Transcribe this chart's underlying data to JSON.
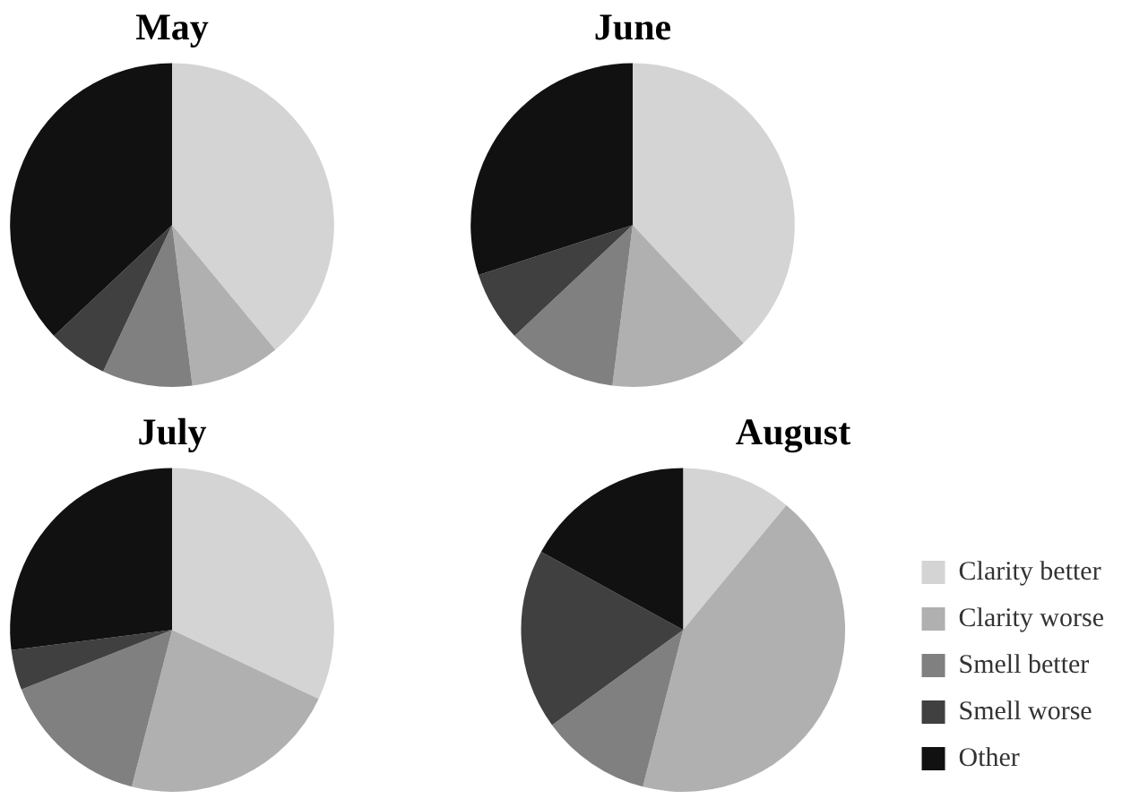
{
  "chart_data": [
    {
      "type": "pie",
      "title": "May",
      "categories": [
        null,
        null,
        null,
        null,
        null
      ],
      "values": [
        39,
        9,
        9,
        6,
        37
      ],
      "colors": [
        "#d4d4d4",
        "#b0b0b0",
        "#808080",
        "#404040",
        "#111111"
      ],
      "legend": false
    },
    {
      "type": "pie",
      "title": "June",
      "categories": [
        null,
        null,
        null,
        null,
        null
      ],
      "values": [
        38,
        14,
        11,
        7,
        30
      ],
      "colors": [
        "#d4d4d4",
        "#b0b0b0",
        "#808080",
        "#404040",
        "#111111"
      ],
      "legend": false
    },
    {
      "type": "pie",
      "title": "July",
      "categories": [
        null,
        null,
        null,
        null,
        null
      ],
      "values": [
        32,
        22,
        15,
        4,
        27
      ],
      "colors": [
        "#d4d4d4",
        "#b0b0b0",
        "#808080",
        "#404040",
        "#111111"
      ],
      "legend": false
    },
    {
      "type": "pie",
      "title": "August",
      "categories": [
        "Clarity better",
        "Clarity worse",
        "Smell better",
        "Smell worse",
        "Other"
      ],
      "values": [
        11,
        43,
        11,
        18,
        17
      ],
      "colors": [
        "#d4d4d4",
        "#b0b0b0",
        "#808080",
        "#404040",
        "#111111"
      ],
      "legend": "right"
    }
  ]
}
